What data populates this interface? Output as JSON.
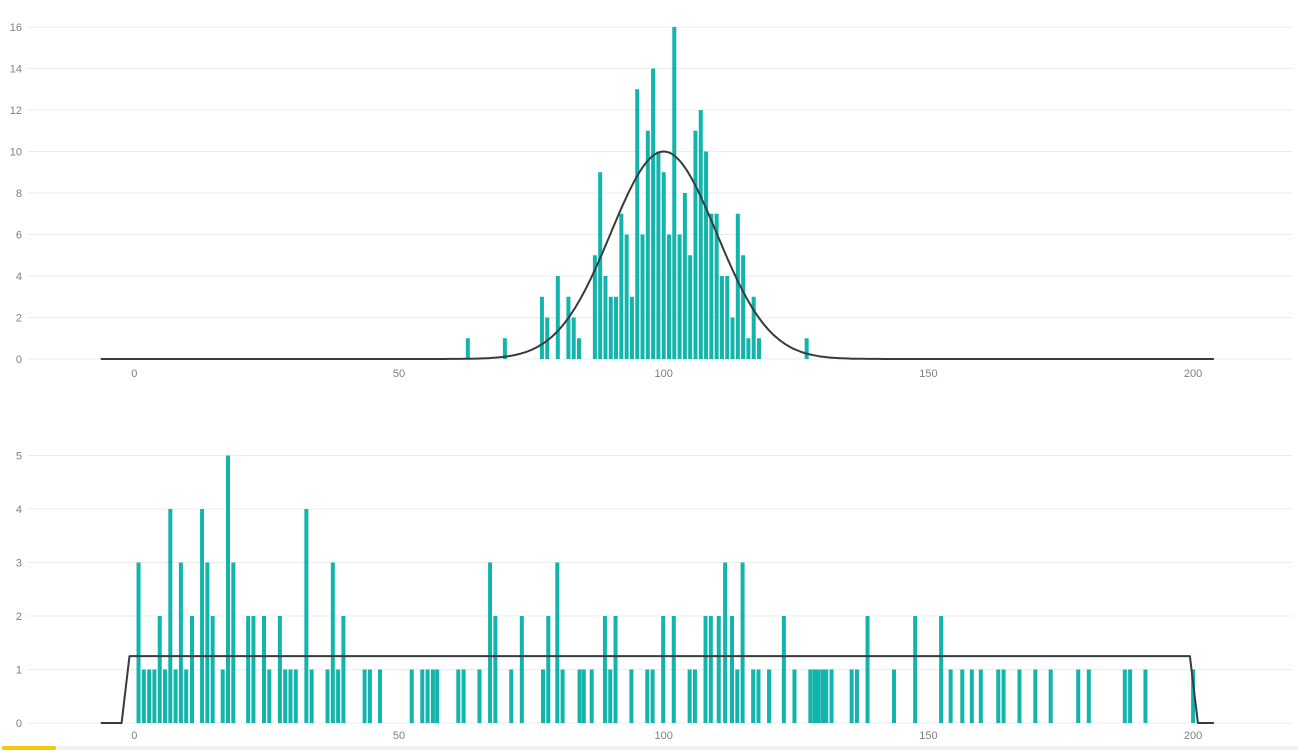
{
  "page": {
    "background": "#ffffff"
  },
  "colors": {
    "bar": "#12b5ac",
    "curve": "#373b40",
    "gridline": "#ececec",
    "axis_label": "#808080",
    "scrollbar_thumb": "#f2c811",
    "scrollbar_track": "#f2f1f0"
  },
  "chart_data": [
    {
      "type": "bar",
      "name": "histogram-with-normal-curve",
      "title": "",
      "xlabel": "",
      "ylabel": "",
      "x_ticks": [
        0,
        50,
        100,
        150,
        200
      ],
      "y_ticks": [
        0,
        2,
        4,
        6,
        8,
        10,
        12,
        14,
        16
      ],
      "ylim": [
        0,
        16
      ],
      "xlim": [
        -20,
        219
      ],
      "grid": true,
      "legend": false,
      "bars": [
        [
          63,
          1
        ],
        [
          70,
          1
        ],
        [
          77,
          3
        ],
        [
          78,
          2
        ],
        [
          80,
          4
        ],
        [
          82,
          3
        ],
        [
          83,
          2
        ],
        [
          84,
          1
        ],
        [
          87,
          5
        ],
        [
          88,
          9
        ],
        [
          89,
          4
        ],
        [
          90,
          3
        ],
        [
          91,
          3
        ],
        [
          92,
          7
        ],
        [
          93,
          6
        ],
        [
          94,
          3
        ],
        [
          95,
          13
        ],
        [
          96,
          6
        ],
        [
          97,
          11
        ],
        [
          98,
          14
        ],
        [
          99,
          10
        ],
        [
          100,
          9
        ],
        [
          101,
          6
        ],
        [
          102,
          16
        ],
        [
          103,
          6
        ],
        [
          104,
          8
        ],
        [
          105,
          5
        ],
        [
          106,
          11
        ],
        [
          107,
          12
        ],
        [
          108,
          10
        ],
        [
          109,
          7
        ],
        [
          110,
          7
        ],
        [
          111,
          4
        ],
        [
          112,
          4
        ],
        [
          113,
          2
        ],
        [
          114,
          7
        ],
        [
          115,
          5
        ],
        [
          116,
          1
        ],
        [
          117,
          3
        ],
        [
          118,
          1
        ],
        [
          127,
          1
        ]
      ],
      "curve": {
        "kind": "normal",
        "mean": 100,
        "sd": 10,
        "peak": 10,
        "x_start": -6.2,
        "x_end": 203.8
      }
    },
    {
      "type": "bar",
      "name": "histogram-with-uniform-curve",
      "title": "",
      "xlabel": "",
      "ylabel": "",
      "x_ticks": [
        0,
        50,
        100,
        150,
        200
      ],
      "y_ticks": [
        0,
        1,
        2,
        3,
        4,
        5
      ],
      "ylim": [
        0,
        5
      ],
      "xlim": [
        -20,
        219
      ],
      "grid": true,
      "legend": false,
      "bars": [
        [
          0.8,
          3
        ],
        [
          1.8,
          1
        ],
        [
          2.8,
          1
        ],
        [
          3.8,
          1
        ],
        [
          4.8,
          2
        ],
        [
          5.8,
          1
        ],
        [
          6.8,
          4
        ],
        [
          7.8,
          1
        ],
        [
          8.8,
          3
        ],
        [
          9.8,
          1
        ],
        [
          10.9,
          2
        ],
        [
          12.8,
          4
        ],
        [
          13.8,
          3
        ],
        [
          14.8,
          2
        ],
        [
          16.7,
          1
        ],
        [
          17.7,
          5
        ],
        [
          18.7,
          3
        ],
        [
          21.5,
          2
        ],
        [
          22.5,
          2
        ],
        [
          24.5,
          2
        ],
        [
          25.5,
          1
        ],
        [
          27.5,
          2
        ],
        [
          28.5,
          1
        ],
        [
          29.5,
          1
        ],
        [
          30.5,
          1
        ],
        [
          32.5,
          4
        ],
        [
          33.5,
          1
        ],
        [
          36.5,
          1
        ],
        [
          37.5,
          3
        ],
        [
          38.5,
          1
        ],
        [
          39.5,
          2
        ],
        [
          43.5,
          1
        ],
        [
          44.5,
          1
        ],
        [
          46.4,
          1
        ],
        [
          52.4,
          1
        ],
        [
          54.4,
          1
        ],
        [
          55.4,
          1
        ],
        [
          56.4,
          1
        ],
        [
          57.2,
          1
        ],
        [
          61.2,
          1
        ],
        [
          62.2,
          1
        ],
        [
          65.2,
          1
        ],
        [
          67.2,
          3
        ],
        [
          68.2,
          2
        ],
        [
          71.2,
          1
        ],
        [
          73.2,
          2
        ],
        [
          77.2,
          1
        ],
        [
          78.2,
          2
        ],
        [
          79.9,
          3
        ],
        [
          80.9,
          1
        ],
        [
          84.1,
          1
        ],
        [
          84.9,
          1
        ],
        [
          86.4,
          1
        ],
        [
          88.9,
          2
        ],
        [
          89.9,
          1
        ],
        [
          90.9,
          2
        ],
        [
          93.9,
          1
        ],
        [
          96.9,
          1
        ],
        [
          97.9,
          1
        ],
        [
          99.9,
          2
        ],
        [
          101.9,
          2
        ],
        [
          104.9,
          1
        ],
        [
          105.9,
          1
        ],
        [
          107.9,
          2
        ],
        [
          108.9,
          2
        ],
        [
          110.4,
          2
        ],
        [
          111.6,
          3
        ],
        [
          112.9,
          2
        ],
        [
          113.9,
          1
        ],
        [
          114.9,
          3
        ],
        [
          116.9,
          1
        ],
        [
          117.9,
          1
        ],
        [
          119.9,
          1
        ],
        [
          122.7,
          2
        ],
        [
          124.7,
          1
        ],
        [
          127.7,
          1
        ],
        [
          128.5,
          1
        ],
        [
          129.2,
          1
        ],
        [
          130,
          1
        ],
        [
          130.7,
          1
        ],
        [
          131.7,
          1
        ],
        [
          135.5,
          1
        ],
        [
          136.5,
          1
        ],
        [
          138.5,
          2
        ],
        [
          143.5,
          1
        ],
        [
          147.5,
          2
        ],
        [
          152.4,
          2
        ],
        [
          154.2,
          1
        ],
        [
          156.4,
          1
        ],
        [
          158.2,
          1
        ],
        [
          159.9,
          1
        ],
        [
          163.2,
          1
        ],
        [
          164.2,
          1
        ],
        [
          167.2,
          1
        ],
        [
          170.2,
          1
        ],
        [
          173.1,
          1
        ],
        [
          178.3,
          1
        ],
        [
          180.3,
          1
        ],
        [
          187.1,
          1
        ],
        [
          188.1,
          1
        ],
        [
          191,
          1
        ],
        [
          200,
          1
        ]
      ],
      "curve": {
        "kind": "uniform",
        "level": 1.25,
        "rise_start": -2.4,
        "rise_end": -0.9,
        "fall_start": 199.4,
        "fall_end": 200.9,
        "x_start": -6.2,
        "x_end": 203.8
      }
    }
  ]
}
